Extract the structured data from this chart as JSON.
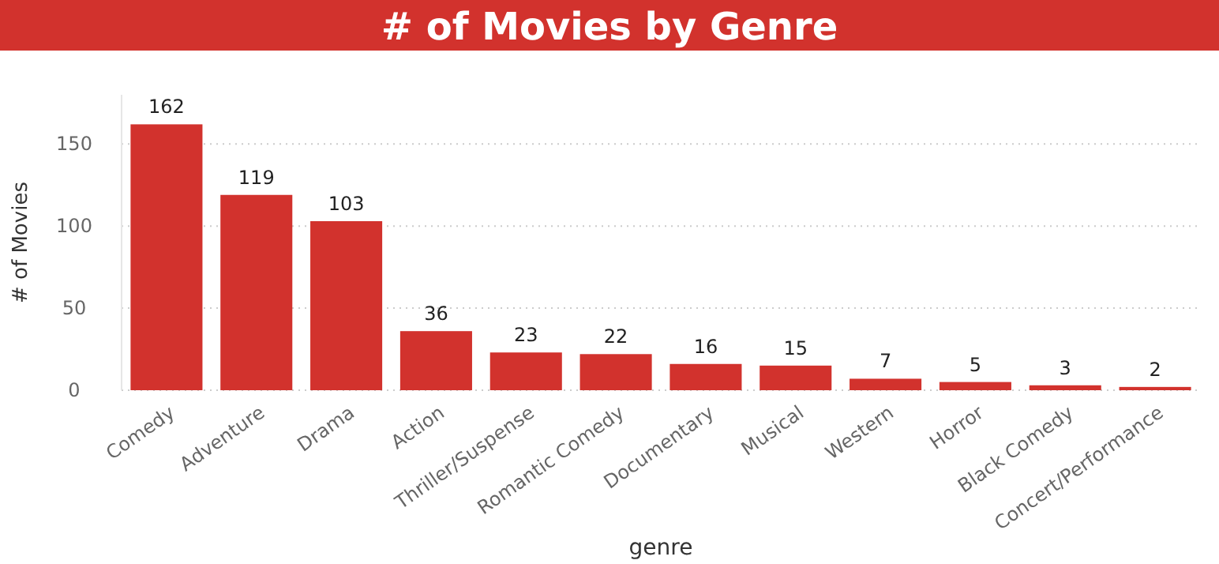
{
  "chart_data": {
    "type": "bar",
    "title": "# of Movies by Genre",
    "xlabel": "genre",
    "ylabel": "# of Movies",
    "categories": [
      "Comedy",
      "Adventure",
      "Drama",
      "Action",
      "Thriller/Suspense",
      "Romantic Comedy",
      "Documentary",
      "Musical",
      "Western",
      "Horror",
      "Black Comedy",
      "Concert/Performance"
    ],
    "values": [
      162,
      119,
      103,
      36,
      23,
      22,
      16,
      15,
      7,
      5,
      3,
      2
    ],
    "color": "#d2322d",
    "ylim": [
      0,
      180
    ],
    "yticks": [
      0,
      50,
      100,
      150
    ],
    "grid": "y",
    "data_labels": true
  }
}
